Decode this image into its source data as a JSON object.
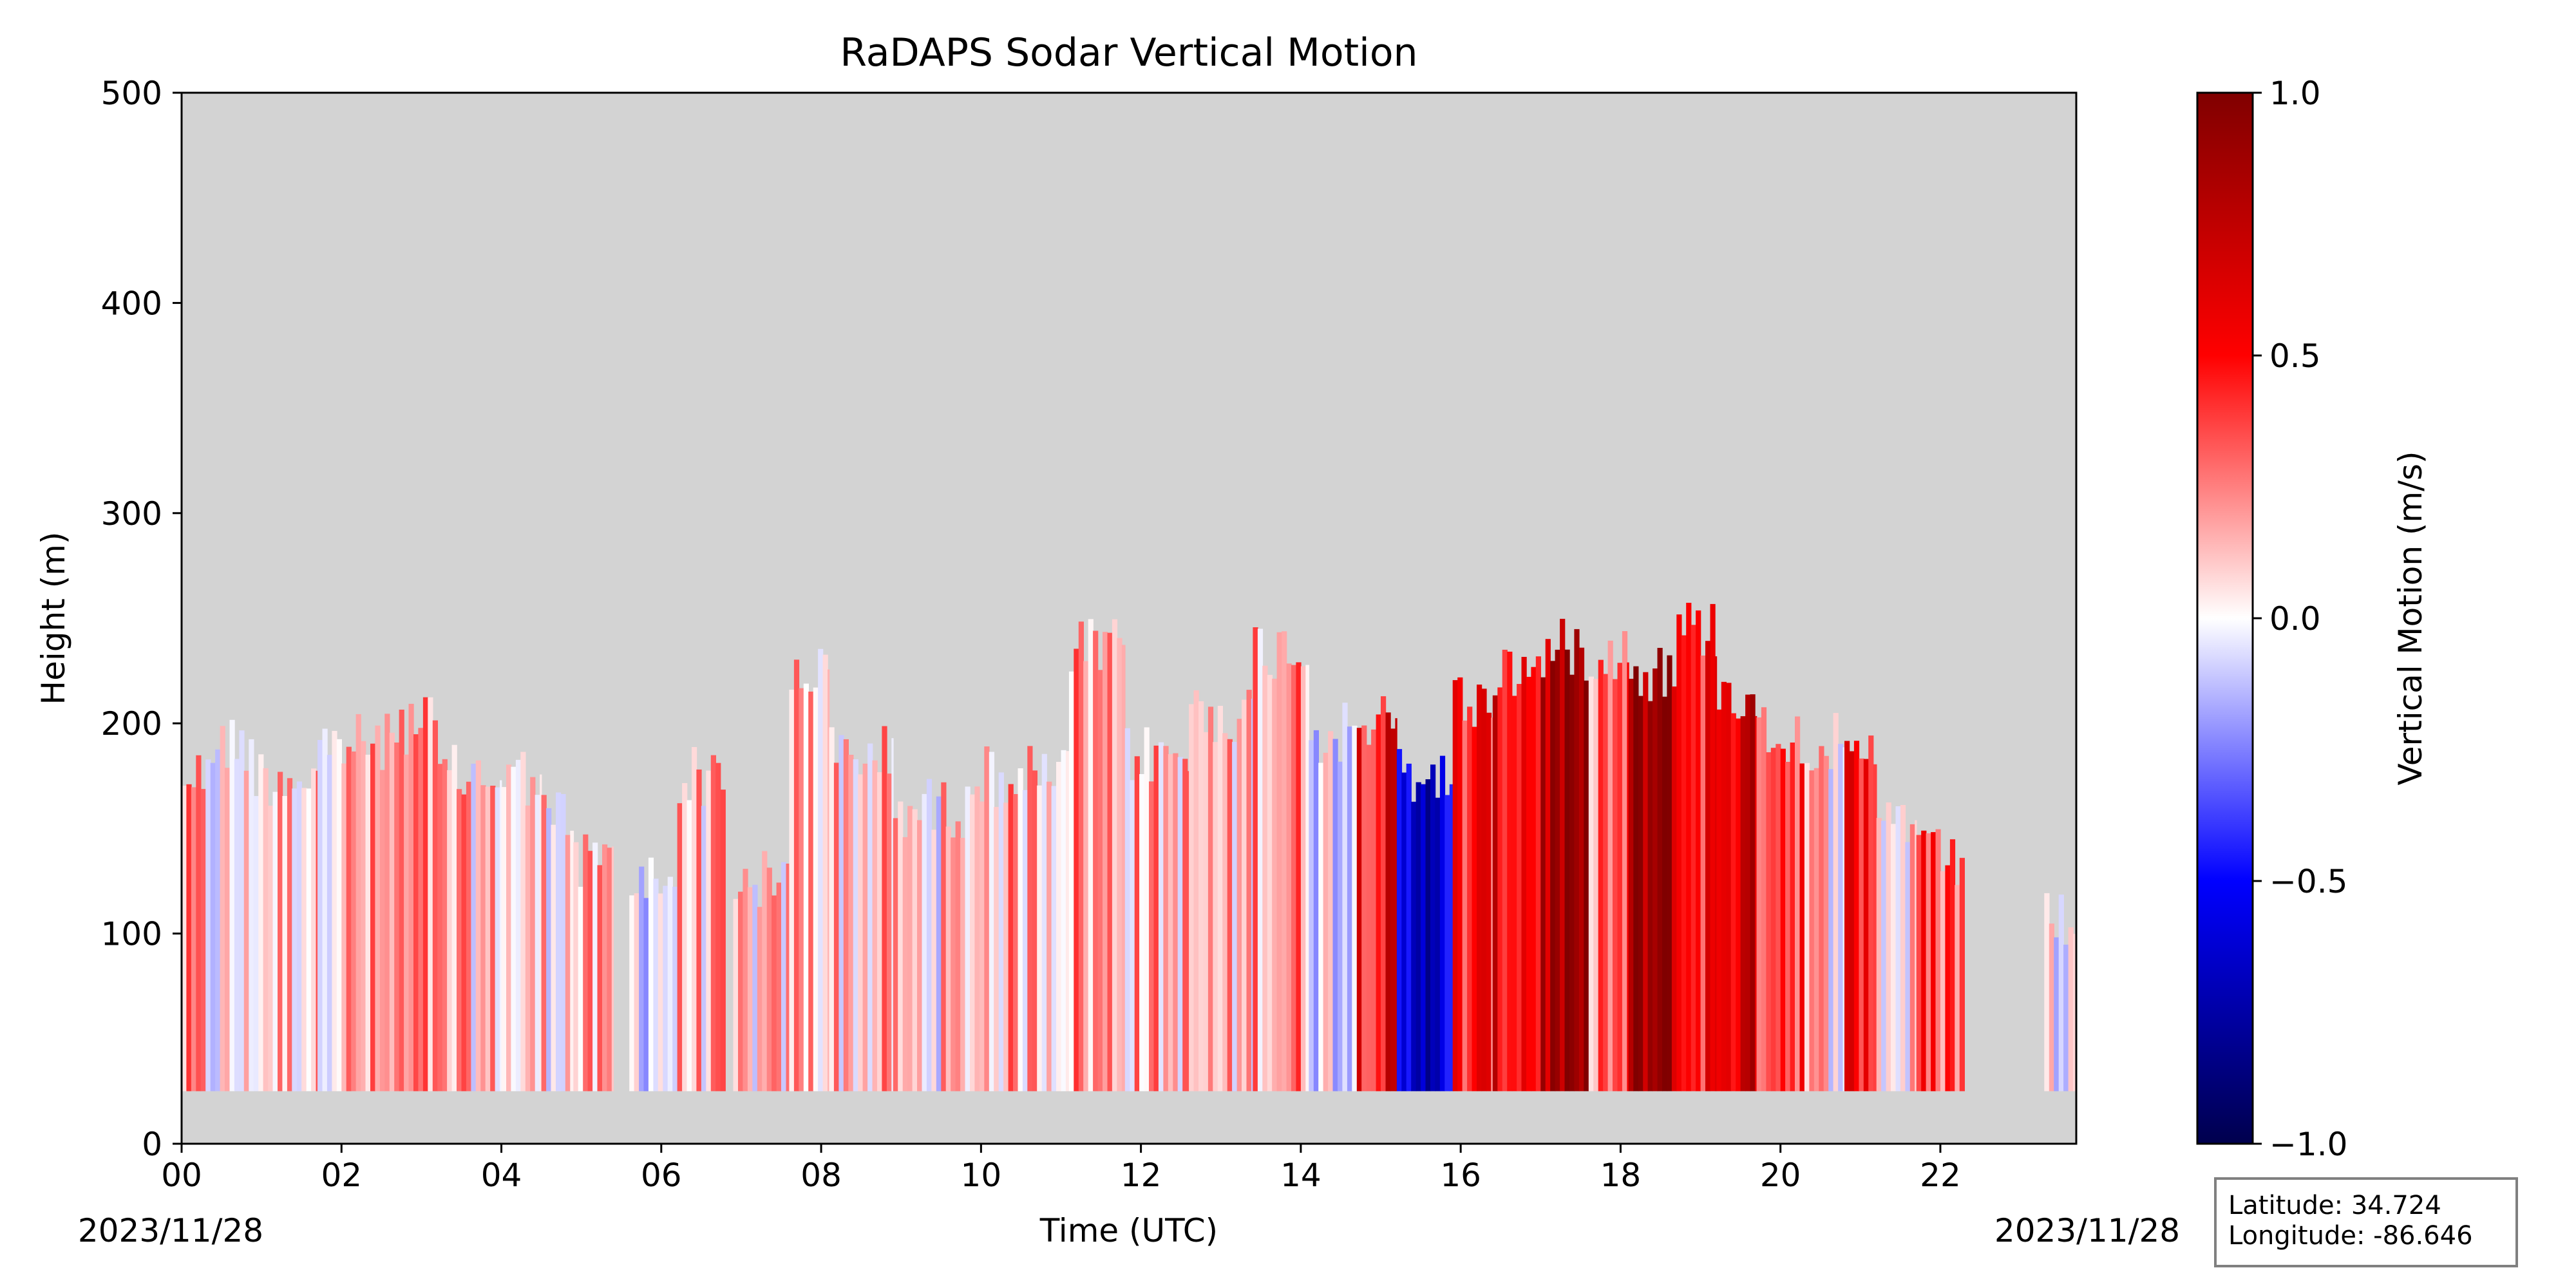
{
  "chart_data": {
    "type": "heatmap",
    "title": "RaDAPS Sodar Vertical Motion",
    "xlabel": "Time (UTC)",
    "ylabel": "Height (m)",
    "x_ticks": [
      "00",
      "02",
      "04",
      "06",
      "08",
      "10",
      "12",
      "14",
      "16",
      "18",
      "20",
      "22"
    ],
    "x_tick_hours": [
      0,
      2,
      4,
      6,
      8,
      10,
      12,
      14,
      16,
      18,
      20,
      22
    ],
    "xlim": [
      0,
      23.7
    ],
    "date_left": "2023/11/28",
    "date_right": "2023/11/28",
    "y_ticks": [
      "0",
      "100",
      "200",
      "300",
      "400",
      "500"
    ],
    "ylim": [
      0,
      500
    ],
    "colorbar": {
      "label": "Vertical Motion (m/s)",
      "ticks": [
        "−1.0",
        "−0.5",
        "0.0",
        "0.5",
        "1.0"
      ],
      "range": [
        -1.0,
        1.0
      ],
      "colormap": "seismic"
    },
    "missing_color": "#d3d3d3",
    "info_box": {
      "latitude": "Latitude: 34.724",
      "longitude": "Longitude: -86.646"
    },
    "data_floor_m": 25,
    "segments": [
      {
        "t0": 0.0,
        "t1": 0.3,
        "top": 190,
        "mean": 0.15
      },
      {
        "t0": 0.3,
        "t1": 0.9,
        "top": 205,
        "mean": 0.0
      },
      {
        "t0": 0.9,
        "t1": 1.7,
        "top": 190,
        "mean": 0.12
      },
      {
        "t0": 1.7,
        "t1": 2.6,
        "top": 205,
        "mean": 0.15
      },
      {
        "t0": 2.6,
        "t1": 3.2,
        "top": 215,
        "mean": 0.18
      },
      {
        "t0": 3.2,
        "t1": 4.0,
        "top": 190,
        "mean": 0.12
      },
      {
        "t0": 4.0,
        "t1": 4.5,
        "top": 190,
        "mean": 0.05
      },
      {
        "t0": 4.5,
        "t1": 4.9,
        "top": 170,
        "mean": 0.1
      },
      {
        "t0": 4.9,
        "t1": 5.4,
        "top": 150,
        "mean": 0.1
      },
      {
        "t0": 5.4,
        "t1": 5.6,
        "top": 25,
        "mean": null
      },
      {
        "t0": 5.6,
        "t1": 6.2,
        "top": 140,
        "mean": 0.0
      },
      {
        "t0": 6.2,
        "t1": 6.8,
        "top": 190,
        "mean": 0.12
      },
      {
        "t0": 6.8,
        "t1": 6.9,
        "top": 25,
        "mean": null
      },
      {
        "t0": 6.9,
        "t1": 7.6,
        "top": 140,
        "mean": 0.08
      },
      {
        "t0": 7.6,
        "t1": 8.1,
        "top": 240,
        "mean": 0.15
      },
      {
        "t0": 8.1,
        "t1": 8.9,
        "top": 200,
        "mean": 0.12
      },
      {
        "t0": 8.9,
        "t1": 9.8,
        "top": 175,
        "mean": 0.08
      },
      {
        "t0": 9.8,
        "t1": 11.1,
        "top": 190,
        "mean": 0.15
      },
      {
        "t0": 11.1,
        "t1": 11.8,
        "top": 250,
        "mean": 0.2
      },
      {
        "t0": 11.8,
        "t1": 12.6,
        "top": 200,
        "mean": 0.15
      },
      {
        "t0": 12.6,
        "t1": 13.4,
        "top": 220,
        "mean": 0.1
      },
      {
        "t0": 13.4,
        "t1": 14.1,
        "top": 250,
        "mean": 0.22
      },
      {
        "t0": 14.1,
        "t1": 14.7,
        "top": 210,
        "mean": 0.0
      },
      {
        "t0": 14.7,
        "t1": 15.2,
        "top": 215,
        "mean": 0.55
      },
      {
        "t0": 15.2,
        "t1": 15.9,
        "top": 190,
        "mean": -0.6
      },
      {
        "t0": 15.9,
        "t1": 16.4,
        "top": 225,
        "mean": 0.45
      },
      {
        "t0": 16.4,
        "t1": 17.0,
        "top": 240,
        "mean": 0.55
      },
      {
        "t0": 17.0,
        "t1": 17.6,
        "top": 250,
        "mean": 0.8
      },
      {
        "t0": 17.6,
        "t1": 18.1,
        "top": 250,
        "mean": 0.3
      },
      {
        "t0": 18.1,
        "t1": 18.7,
        "top": 240,
        "mean": 0.85
      },
      {
        "t0": 18.7,
        "t1": 19.2,
        "top": 260,
        "mean": 0.5
      },
      {
        "t0": 19.2,
        "t1": 19.7,
        "top": 230,
        "mean": 0.65
      },
      {
        "t0": 19.7,
        "t1": 20.3,
        "top": 210,
        "mean": 0.45
      },
      {
        "t0": 20.3,
        "t1": 20.8,
        "top": 205,
        "mean": 0.1
      },
      {
        "t0": 20.8,
        "t1": 21.2,
        "top": 195,
        "mean": 0.5
      },
      {
        "t0": 21.2,
        "t1": 21.7,
        "top": 170,
        "mean": 0.05
      },
      {
        "t0": 21.7,
        "t1": 22.3,
        "top": 150,
        "mean": 0.35
      },
      {
        "t0": 22.3,
        "t1": 23.3,
        "top": 25,
        "mean": null
      },
      {
        "t0": 23.3,
        "t1": 23.7,
        "top": 120,
        "mean": 0.0
      }
    ]
  }
}
